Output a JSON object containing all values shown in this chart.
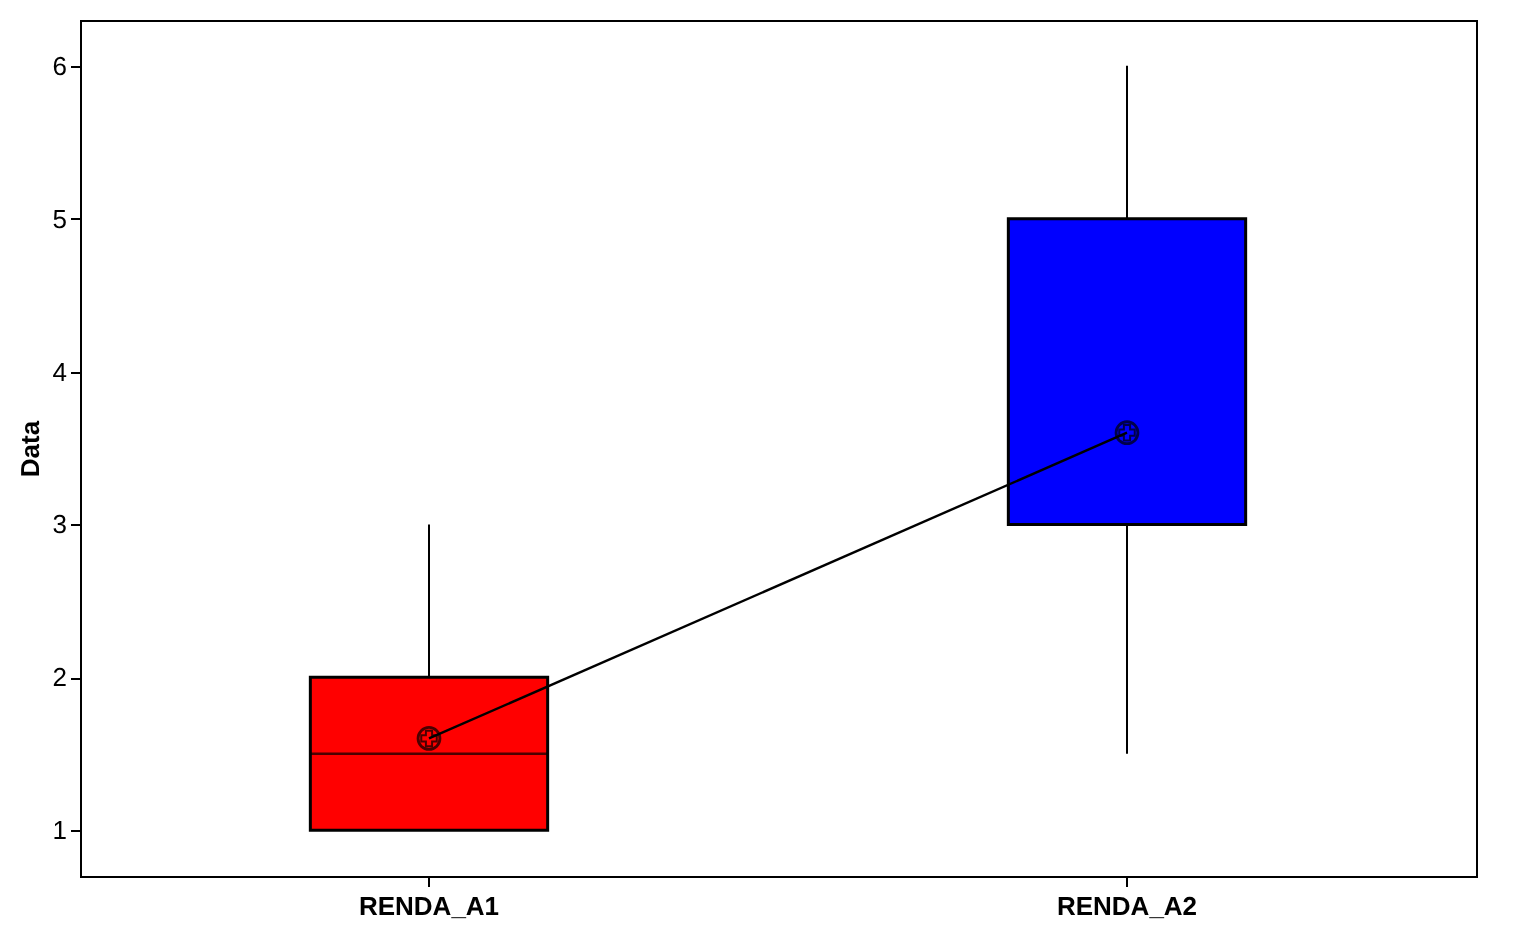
{
  "chart_data": {
    "type": "box",
    "categories": [
      "RENDA_A1",
      "RENDA_A2"
    ],
    "ylabel": "Data",
    "ylim": [
      0.7,
      6.3
    ],
    "yticks": [
      1,
      2,
      3,
      4,
      5,
      6
    ],
    "grid": false,
    "boxes": [
      {
        "low": 1,
        "q1": 1,
        "median": 1.5,
        "q3": 2,
        "high": 3
      },
      {
        "low": 1.5,
        "q1": 3,
        "median": 3,
        "q3": 5,
        "high": 6
      }
    ],
    "colors": [
      "#ff0000",
      "#0000ff"
    ],
    "series": [
      {
        "type": "line",
        "values": [
          1.6,
          3.6
        ],
        "color": "#000000",
        "marker": "circle"
      }
    ]
  }
}
